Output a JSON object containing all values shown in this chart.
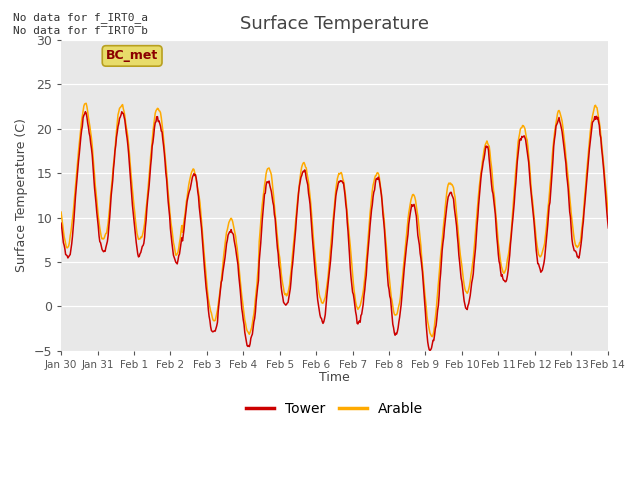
{
  "title": "Surface Temperature",
  "ylabel": "Surface Temperature (C)",
  "xlabel": "Time",
  "ylim": [
    -5,
    30
  ],
  "bg_color": "#e8e8e8",
  "fig_color": "#ffffff",
  "grid_color": "#ffffff",
  "tower_color": "#cc0000",
  "arable_color": "#ffaa00",
  "tower_label": "Tower",
  "arable_label": "Arable",
  "bc_met_label": "BC_met",
  "no_data_1": "No data for f_IRT0_a",
  "no_data_2": "No data for f̅IRT0̅b",
  "xtick_labels": [
    "Jan 30",
    "Jan 31",
    "Feb 1",
    "Feb 2",
    "Feb 3",
    "Feb 4",
    "Feb 5",
    "Feb 6",
    "Feb 7",
    "Feb 8",
    "Feb 9",
    "Feb 10",
    "Feb 11",
    "Feb 12",
    "Feb 13",
    "Feb 14"
  ],
  "xtick_positions": [
    0,
    24,
    48,
    72,
    96,
    120,
    144,
    168,
    192,
    216,
    240,
    264,
    288,
    312,
    336,
    360
  ]
}
